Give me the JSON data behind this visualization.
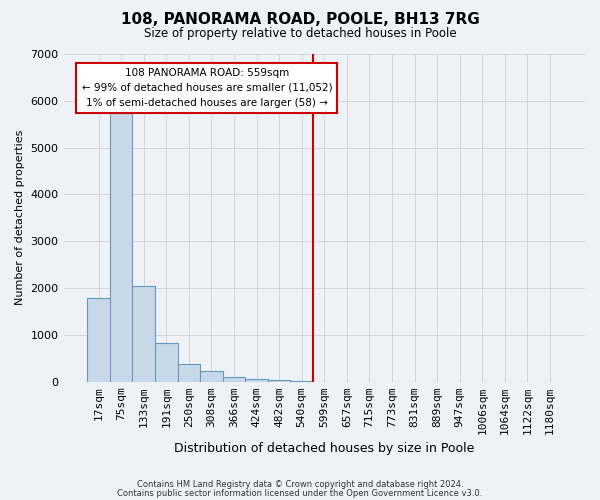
{
  "title": "108, PANORAMA ROAD, POOLE, BH13 7RG",
  "subtitle": "Size of property relative to detached houses in Poole",
  "xlabel": "Distribution of detached houses by size in Poole",
  "ylabel": "Number of detached properties",
  "bin_labels": [
    "17sqm",
    "75sqm",
    "133sqm",
    "191sqm",
    "250sqm",
    "308sqm",
    "366sqm",
    "424sqm",
    "482sqm",
    "540sqm",
    "599sqm",
    "657sqm",
    "715sqm",
    "773sqm",
    "831sqm",
    "889sqm",
    "947sqm",
    "1006sqm",
    "1064sqm",
    "1122sqm",
    "1180sqm"
  ],
  "bar_values": [
    1780,
    5740,
    2050,
    820,
    370,
    220,
    105,
    60,
    30,
    5,
    0,
    0,
    0,
    0,
    0,
    0,
    0,
    0,
    0,
    0,
    0
  ],
  "bar_color": "#c8d8e8",
  "bar_edge_color": "#6699bb",
  "ylim": [
    0,
    7000
  ],
  "yticks": [
    0,
    1000,
    2000,
    3000,
    4000,
    5000,
    6000,
    7000
  ],
  "vline_x": 9.5,
  "vline_color": "#cc0000",
  "annotation_title": "108 PANORAMA ROAD: 559sqm",
  "annotation_line1": "← 99% of detached houses are smaller (11,052)",
  "annotation_line2": "1% of semi-detached houses are larger (58) →",
  "annotation_box_color": "#cc0000",
  "annotation_bg": "#ffffff",
  "footnote1": "Contains HM Land Registry data © Crown copyright and database right 2024.",
  "footnote2": "Contains public sector information licensed under the Open Government Licence v3.0.",
  "bg_color": "#eef2f7",
  "plot_bg_color": "#eef2f7",
  "grid_color": "#cccccc"
}
